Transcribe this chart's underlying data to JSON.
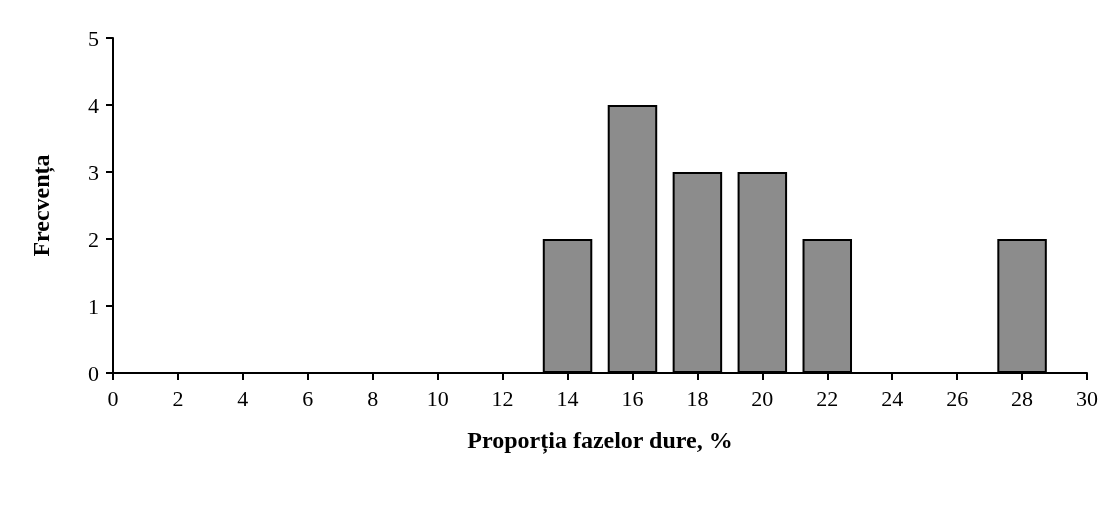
{
  "chart_data": {
    "type": "bar",
    "xlabel": "Proporția fazelor dure, %",
    "ylabel": "Frecvența",
    "x": [
      14,
      16,
      18,
      20,
      22,
      28
    ],
    "values": [
      2,
      4,
      3,
      3,
      2,
      2
    ],
    "color": "#8c8c8c",
    "xlim": [
      0,
      30
    ],
    "xticks": [
      0,
      2,
      4,
      6,
      8,
      10,
      12,
      14,
      16,
      18,
      20,
      22,
      24,
      26,
      28,
      30
    ],
    "ylim": [
      0,
      5
    ],
    "yticks": [
      0,
      1,
      2,
      3,
      4,
      5
    ],
    "grid": false
  }
}
